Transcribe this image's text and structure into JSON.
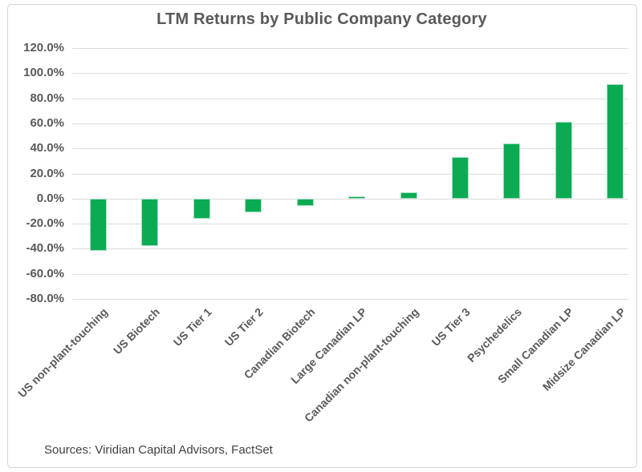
{
  "chart_data": {
    "type": "bar",
    "title": "LTM Returns by Public Company Category",
    "categories": [
      "US non-plant-touching",
      "US Biotech",
      "US Tier 1",
      "US Tier 2",
      "Canadian Biotech",
      "Large Canadian LP",
      "Canadian non-plant-touching",
      "US Tier 3",
      "Psychedelics",
      "Small Canadian LP",
      "Midsize Canadian LP"
    ],
    "values": [
      -42,
      -38,
      -16,
      -11,
      -6,
      2,
      5,
      33,
      44,
      61,
      91
    ],
    "value_unit": "percent",
    "xlabel": "",
    "ylabel": "",
    "ylim": [
      -80,
      120
    ],
    "y_ticks": [
      "120.0%",
      "100.0%",
      "80.0%",
      "60.0%",
      "40.0%",
      "20.0%",
      "0.0%",
      "-20.0%",
      "-40.0%",
      "-60.0%",
      "-80.0%"
    ],
    "grid": true,
    "legend": "none",
    "bar_color": "#0bab54",
    "bar_border_color": "#a5dfbe",
    "gridline_color": "#dcdcdc",
    "text_color": "#595959"
  },
  "footer": {
    "source": "Sources: Viridian Capital Advisors, FactSet"
  }
}
